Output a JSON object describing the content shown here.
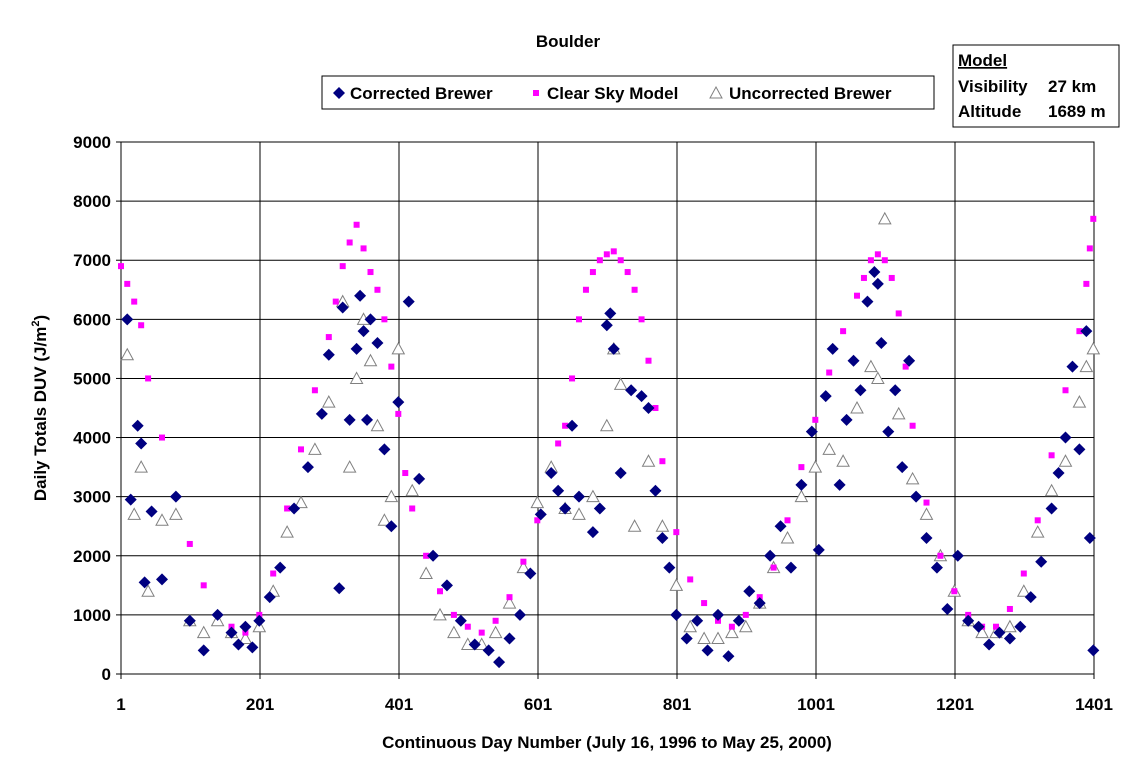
{
  "chart_data": {
    "type": "scatter",
    "title": "Boulder",
    "xlabel": "Continuous Day Number (July 16, 1996 to May 25, 2000)",
    "ylabel": "Daily Totals DUV (J/m",
    "ylabel_superscript": "2",
    "ylabel_suffix": ")",
    "xlim": [
      1,
      1401
    ],
    "ylim": [
      0,
      9000
    ],
    "xticks": [
      1,
      201,
      401,
      601,
      801,
      1001,
      1201,
      1401
    ],
    "xtick_labels": [
      "1",
      "201",
      "401",
      "601",
      "801",
      "1001",
      "1201",
      "1401"
    ],
    "yticks": [
      0,
      1000,
      2000,
      3000,
      4000,
      5000,
      6000,
      7000,
      8000,
      9000
    ],
    "ytick_labels": [
      "0",
      "1000",
      "2000",
      "3000",
      "4000",
      "5000",
      "6000",
      "7000",
      "8000",
      "9000"
    ],
    "grid": true,
    "legend_position": "top",
    "series": [
      {
        "name": "Corrected Brewer",
        "marker": "diamond",
        "color": "#000080",
        "x": [
          10,
          15,
          25,
          30,
          35,
          45,
          60,
          80,
          100,
          120,
          140,
          160,
          170,
          180,
          190,
          200,
          215,
          230,
          250,
          270,
          290,
          300,
          315,
          320,
          330,
          340,
          345,
          350,
          355,
          360,
          370,
          380,
          390,
          400,
          415,
          430,
          450,
          470,
          490,
          510,
          530,
          545,
          560,
          575,
          590,
          605,
          620,
          630,
          640,
          650,
          660,
          680,
          690,
          700,
          705,
          710,
          720,
          735,
          750,
          760,
          770,
          780,
          790,
          800,
          815,
          830,
          845,
          860,
          875,
          890,
          905,
          920,
          935,
          950,
          965,
          980,
          995,
          1005,
          1015,
          1025,
          1035,
          1045,
          1055,
          1065,
          1075,
          1085,
          1090,
          1095,
          1105,
          1115,
          1125,
          1135,
          1145,
          1160,
          1175,
          1190,
          1205,
          1220,
          1235,
          1250,
          1265,
          1280,
          1295,
          1310,
          1325,
          1340,
          1350,
          1360,
          1370,
          1380,
          1390,
          1395,
          1400
        ],
        "y": [
          6000,
          2950,
          4200,
          3900,
          1550,
          2750,
          1600,
          3000,
          900,
          400,
          1000,
          700,
          500,
          800,
          450,
          900,
          1300,
          1800,
          2800,
          3500,
          4400,
          5400,
          1450,
          6200,
          4300,
          5500,
          6400,
          5800,
          4300,
          6000,
          5600,
          3800,
          2500,
          4600,
          6300,
          3300,
          2000,
          1500,
          900,
          500,
          400,
          200,
          600,
          1000,
          1700,
          2700,
          3400,
          3100,
          2800,
          4200,
          3000,
          2400,
          2800,
          5900,
          6100,
          5500,
          3400,
          4800,
          4700,
          4500,
          3100,
          2300,
          1800,
          1000,
          600,
          900,
          400,
          1000,
          300,
          900,
          1400,
          1200,
          2000,
          2500,
          1800,
          3200,
          4100,
          2100,
          4700,
          5500,
          3200,
          4300,
          5300,
          4800,
          6300,
          6800,
          6600,
          5600,
          4100,
          4800,
          3500,
          5300,
          3000,
          2300,
          1800,
          1100,
          2000,
          900,
          800,
          500,
          700,
          600,
          800,
          1300,
          1900,
          2800,
          3400,
          4000,
          5200,
          3800,
          5800,
          2300,
          400
        ]
      },
      {
        "name": "Clear Sky Model",
        "marker": "square",
        "color": "#ff00ff",
        "x": [
          1,
          10,
          20,
          30,
          40,
          60,
          80,
          100,
          120,
          140,
          160,
          180,
          200,
          220,
          240,
          260,
          280,
          300,
          310,
          320,
          330,
          340,
          350,
          360,
          370,
          380,
          390,
          400,
          410,
          420,
          440,
          460,
          480,
          500,
          520,
          540,
          560,
          580,
          600,
          620,
          630,
          640,
          650,
          660,
          670,
          680,
          690,
          700,
          710,
          720,
          730,
          740,
          750,
          760,
          770,
          780,
          800,
          820,
          840,
          860,
          880,
          900,
          920,
          940,
          960,
          980,
          1000,
          1020,
          1040,
          1060,
          1070,
          1080,
          1090,
          1100,
          1110,
          1120,
          1130,
          1140,
          1160,
          1180,
          1200,
          1220,
          1240,
          1260,
          1280,
          1300,
          1320,
          1340,
          1360,
          1380,
          1390,
          1395,
          1400
        ],
        "y": [
          6900,
          6600,
          6300,
          5900,
          5000,
          4000,
          3000,
          2200,
          1500,
          1000,
          800,
          700,
          1000,
          1700,
          2800,
          3800,
          4800,
          5700,
          6300,
          6900,
          7300,
          7600,
          7200,
          6800,
          6500,
          6000,
          5200,
          4400,
          3400,
          2800,
          2000,
          1400,
          1000,
          800,
          700,
          900,
          1300,
          1900,
          2600,
          3400,
          3900,
          4200,
          5000,
          6000,
          6500,
          6800,
          7000,
          7100,
          7150,
          7000,
          6800,
          6500,
          6000,
          5300,
          4500,
          3600,
          2400,
          1600,
          1200,
          900,
          800,
          1000,
          1300,
          1800,
          2600,
          3500,
          4300,
          5100,
          5800,
          6400,
          6700,
          7000,
          7100,
          7000,
          6700,
          6100,
          5200,
          4200,
          2900,
          2000,
          1400,
          1000,
          800,
          800,
          1100,
          1700,
          2600,
          3700,
          4800,
          5800,
          6600,
          7200,
          7700
        ]
      },
      {
        "name": "Uncorrected Brewer",
        "marker": "triangle",
        "color": "#808080",
        "x": [
          10,
          20,
          30,
          40,
          60,
          80,
          100,
          120,
          140,
          160,
          180,
          200,
          220,
          240,
          260,
          280,
          300,
          320,
          330,
          340,
          350,
          360,
          370,
          380,
          390,
          400,
          420,
          440,
          460,
          480,
          500,
          520,
          540,
          560,
          580,
          600,
          620,
          640,
          660,
          680,
          700,
          710,
          720,
          740,
          760,
          780,
          800,
          820,
          840,
          860,
          880,
          900,
          920,
          940,
          960,
          980,
          1000,
          1020,
          1040,
          1060,
          1080,
          1090,
          1100,
          1120,
          1140,
          1160,
          1180,
          1200,
          1220,
          1240,
          1260,
          1280,
          1300,
          1320,
          1340,
          1360,
          1380,
          1390,
          1400
        ],
        "y": [
          5400,
          2700,
          3500,
          1400,
          2600,
          2700,
          900,
          700,
          900,
          700,
          600,
          800,
          1400,
          2400,
          2900,
          3800,
          4600,
          6300,
          3500,
          5000,
          6000,
          5300,
          4200,
          2600,
          3000,
          5500,
          3100,
          1700,
          1000,
          700,
          500,
          500,
          700,
          1200,
          1800,
          2900,
          3500,
          2800,
          2700,
          3000,
          4200,
          5500,
          4900,
          2500,
          3600,
          2500,
          1500,
          800,
          600,
          600,
          700,
          800,
          1200,
          1800,
          2300,
          3000,
          3500,
          3800,
          3600,
          4500,
          5200,
          5000,
          7700,
          4400,
          3300,
          2700,
          2000,
          1400,
          900,
          700,
          700,
          800,
          1400,
          2400,
          3100,
          3600,
          4600,
          5200,
          5500
        ]
      }
    ],
    "model_box": {
      "title": "Model",
      "rows": [
        {
          "label": "Visibility",
          "value": "27 km"
        },
        {
          "label": "Altitude",
          "value": "1689 m"
        }
      ]
    }
  }
}
